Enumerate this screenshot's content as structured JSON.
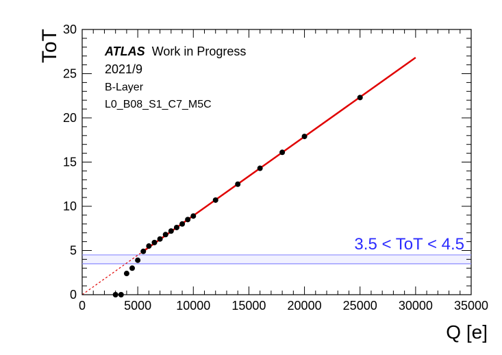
{
  "chart_data": {
    "type": "scatter",
    "title": "",
    "xlabel": "Q [e]",
    "ylabel": "ToT",
    "xlim": [
      0,
      35000
    ],
    "ylim": [
      0,
      30
    ],
    "grid": false,
    "x_ticks": [
      0,
      5000,
      10000,
      15000,
      20000,
      25000,
      30000,
      35000
    ],
    "y_ticks": [
      0,
      5,
      10,
      15,
      20,
      25,
      30
    ],
    "annotations": {
      "experiment": "ATLAS",
      "status": "Work in Progress",
      "date": "2021/9",
      "layer": "B-Layer",
      "module": "L0_B08_S1_C7_M5C",
      "band_label": "3.5 < ToT < 4.5"
    },
    "band": {
      "ymin": 3.5,
      "ymax": 4.5,
      "color": "#8a8aff",
      "label_color": "#2b2bff"
    },
    "points": [
      {
        "x": 3000,
        "y": 0.0
      },
      {
        "x": 3500,
        "y": 0.0
      },
      {
        "x": 4000,
        "y": 2.4
      },
      {
        "x": 4500,
        "y": 3.0
      },
      {
        "x": 5000,
        "y": 3.9
      },
      {
        "x": 5500,
        "y": 4.9
      },
      {
        "x": 6000,
        "y": 5.5
      },
      {
        "x": 6500,
        "y": 5.9
      },
      {
        "x": 7000,
        "y": 6.3
      },
      {
        "x": 7500,
        "y": 6.8
      },
      {
        "x": 8000,
        "y": 7.2
      },
      {
        "x": 8500,
        "y": 7.6
      },
      {
        "x": 9000,
        "y": 8.0
      },
      {
        "x": 9500,
        "y": 8.5
      },
      {
        "x": 10000,
        "y": 8.9
      },
      {
        "x": 12000,
        "y": 10.7
      },
      {
        "x": 14000,
        "y": 12.5
      },
      {
        "x": 16000,
        "y": 14.3
      },
      {
        "x": 18000,
        "y": 16.1
      },
      {
        "x": 20000,
        "y": 17.9
      },
      {
        "x": 25000,
        "y": 22.3
      }
    ],
    "fit": {
      "x_start": 5500,
      "x_end": 30000,
      "slope": 0.000894,
      "intercept": 0.0,
      "color": "#e00000"
    },
    "fit_extrapolation": {
      "x_start": 0,
      "x_end": 5500,
      "style": "dashed",
      "color": "#e00000"
    }
  }
}
